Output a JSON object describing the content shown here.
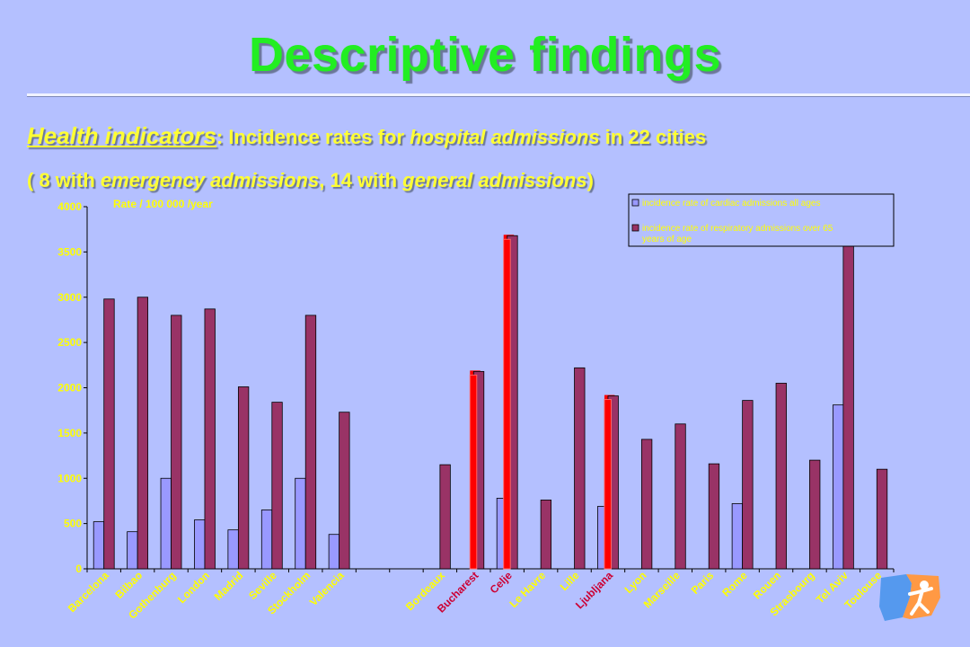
{
  "slide": {
    "title": "Descriptive findings",
    "subtitle_lead": "Health indicators",
    "subtitle_colon": ":",
    "subtitle_part1": " Incidence rates for ",
    "subtitle_part2": "hospital admissions",
    "subtitle_part3": " in 22 cities",
    "subtitle2_part1": "( 8 with ",
    "subtitle2_part2": "emergency admissions",
    "subtitle2_part3": ", 14 with ",
    "subtitle2_part4": "general admissions",
    "subtitle2_part5": ")",
    "logo_icon": "person-figure-logo-icon"
  },
  "colors": {
    "background": "#b4c0ff",
    "cardiac": "#9999ff",
    "respiratory": "#993366",
    "highlight": "#ff0000",
    "label_default": "#ffff00",
    "label_highlight": "#cc0033",
    "title": "#22ee22"
  },
  "chart_data": {
    "type": "bar",
    "ylabel": "Rate / 100 000 /year",
    "ylim": [
      0,
      4000
    ],
    "yticks": [
      0,
      500,
      1000,
      1500,
      2000,
      2500,
      3000,
      3500,
      4000
    ],
    "legend_position": "top-right",
    "categories": [
      "Barcelona",
      "Bilbao",
      "Gothenburg",
      "London",
      "Madrid",
      "Seville",
      "Stockholm",
      "Valencia",
      "",
      "",
      "Bordeaux",
      "Bucharest",
      "Celje",
      "Le Havre",
      "Lille",
      "Ljubljana",
      "Lyon",
      "Marseille",
      "Paris",
      "Rome",
      "Rouen",
      "Strasbourg",
      "Tel Aviv",
      "Toulouse"
    ],
    "highlighted_categories": [
      "Bucharest",
      "Celje",
      "Ljubljana"
    ],
    "series": [
      {
        "name": "incidence rate of cardiac admissions all ages",
        "values": [
          520,
          410,
          1000,
          540,
          430,
          650,
          1000,
          380,
          null,
          null,
          null,
          null,
          780,
          null,
          null,
          690,
          null,
          null,
          null,
          720,
          null,
          null,
          1810,
          null
        ]
      },
      {
        "name": "incidence rate of respiratory admissions over 65 years of age",
        "values": [
          2980,
          3000,
          2800,
          2870,
          2010,
          1840,
          2800,
          1730,
          null,
          null,
          1150,
          2180,
          3680,
          760,
          2220,
          1910,
          1430,
          1600,
          1160,
          1860,
          2050,
          1200,
          3620,
          1100
        ]
      }
    ]
  }
}
